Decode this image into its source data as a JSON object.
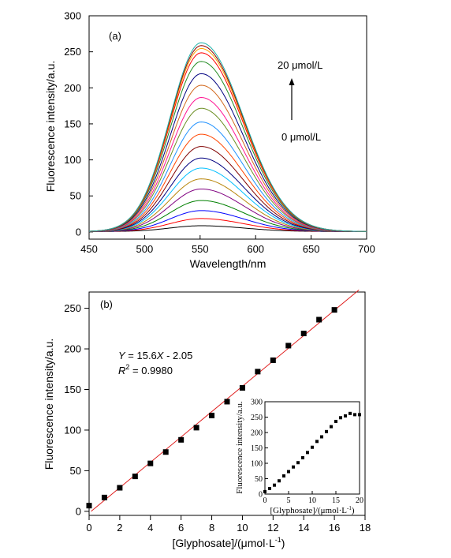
{
  "chart_data": [
    {
      "type": "line",
      "panel_label": "(a)",
      "xlabel": "Wavelength/nm",
      "ylabel": "Fluorescence intensity/a.u.",
      "xlim": [
        450,
        700
      ],
      "ylim": [
        -10,
        300
      ],
      "xticks": [
        450,
        500,
        550,
        600,
        650,
        700
      ],
      "yticks": [
        0,
        50,
        100,
        150,
        200,
        250,
        300
      ],
      "peak_x": 551,
      "annotation_top": "20 μmol/L",
      "annotation_bottom": "0 μmol/L",
      "series": [
        {
          "peak": 8,
          "color": "#000000"
        },
        {
          "peak": 18,
          "color": "#ff0000"
        },
        {
          "peak": 29,
          "color": "#0000ff"
        },
        {
          "peak": 43,
          "color": "#008000"
        },
        {
          "peak": 59,
          "color": "#800080"
        },
        {
          "peak": 73,
          "color": "#b8860b"
        },
        {
          "peak": 88,
          "color": "#00bfff"
        },
        {
          "peak": 102,
          "color": "#000080"
        },
        {
          "peak": 118,
          "color": "#800000"
        },
        {
          "peak": 135,
          "color": "#ff4500"
        },
        {
          "peak": 152,
          "color": "#1e90ff"
        },
        {
          "peak": 171,
          "color": "#6b8e23"
        },
        {
          "peak": 186,
          "color": "#ff1493"
        },
        {
          "peak": 203,
          "color": "#d2691e"
        },
        {
          "peak": 219,
          "color": "#000080"
        },
        {
          "peak": 236,
          "color": "#228b22"
        },
        {
          "peak": 248,
          "color": "#ff0000"
        },
        {
          "peak": 254,
          "color": "#ffa500"
        },
        {
          "peak": 258,
          "color": "#8b0000"
        },
        {
          "peak": 262,
          "color": "#20b2aa"
        }
      ]
    },
    {
      "type": "scatter",
      "panel_label": "(b)",
      "xlabel": "[Glyphosate]/(μmol·L",
      "xlabel_sup": "-1",
      "xlabel_end": ")",
      "ylabel": "Fluorescence intensity/a.u.",
      "xlim": [
        0,
        18
      ],
      "ylim": [
        -5,
        270
      ],
      "xticks": [
        0,
        2,
        4,
        6,
        8,
        10,
        12,
        14,
        16,
        18
      ],
      "yticks": [
        0,
        50,
        100,
        150,
        200,
        250
      ],
      "equation_y": "Y",
      "equation_rest": " = 15.6",
      "equation_x": "X",
      "equation_end": "  - 2.05",
      "r2_label": "R",
      "r2_sup": "2",
      "r2_value": " = 0.9980",
      "fit": {
        "slope": 15.6,
        "intercept": -2.05,
        "x_range": [
          0.13,
          17.6
        ],
        "color": "#e02020"
      },
      "points": {
        "x": [
          0,
          1,
          2,
          3,
          4,
          5,
          6,
          7,
          8,
          9,
          10,
          11,
          12,
          13,
          14,
          15,
          16
        ],
        "y": [
          7,
          17,
          29,
          43,
          59,
          73,
          88,
          103,
          118,
          135,
          152,
          172,
          186,
          204,
          219,
          236,
          248
        ]
      },
      "inset": {
        "type": "scatter",
        "xlabel": "[Glyphosate]/(μmol·L",
        "xlabel_sup": "-1",
        "xlabel_end": ")",
        "ylabel": "Fluorescence intensity/a.u.",
        "xlim": [
          0,
          20
        ],
        "ylim": [
          0,
          300
        ],
        "xticks": [
          0,
          5,
          10,
          15,
          20
        ],
        "yticks": [
          0,
          50,
          100,
          150,
          200,
          250,
          300
        ],
        "points": {
          "x": [
            0,
            1,
            2,
            3,
            4,
            5,
            6,
            7,
            8,
            9,
            10,
            11,
            12,
            13,
            14,
            15,
            16,
            17,
            18,
            19,
            20
          ],
          "y": [
            8,
            18,
            29,
            43,
            59,
            73,
            88,
            102,
            118,
            135,
            152,
            171,
            186,
            203,
            219,
            236,
            248,
            254,
            262,
            258,
            258
          ]
        }
      }
    }
  ]
}
